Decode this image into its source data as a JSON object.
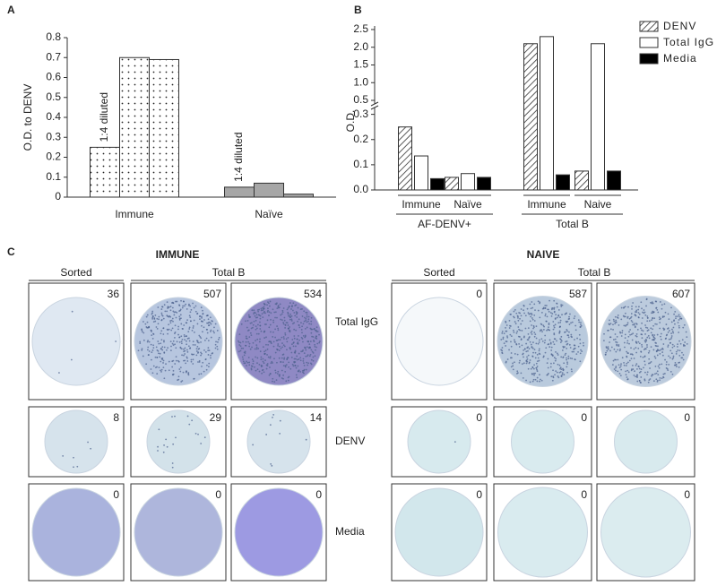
{
  "panel_labels": [
    "A",
    "B",
    "C"
  ],
  "chart_data": [
    {
      "type": "bar",
      "ylabel": "O.D. to DENV",
      "categories": [
        "Immune",
        "Naïve"
      ],
      "values": [
        [
          0.25,
          0.7,
          0.69
        ],
        [
          0.05,
          0.07,
          0.015
        ]
      ],
      "fills": [
        "dotted",
        "#a6a6a6"
      ],
      "annotations": [
        "1:4 diluted",
        "1:4 diluted"
      ],
      "ylim": [
        0,
        0.8
      ],
      "yticks": [
        0,
        0.1,
        0.2,
        0.3,
        0.4,
        0.5,
        0.6,
        0.7,
        0.8
      ]
    },
    {
      "type": "grouped_bar",
      "ylabel": "O.D.",
      "categories": [
        "Immune",
        "Naïve",
        "Immune",
        "Naive"
      ],
      "group_labels": [
        "AF-DENV+",
        "Total B"
      ],
      "series": [
        {
          "name": "DENV",
          "fill": "hatched",
          "values": [
            0.25,
            0.05,
            2.1,
            0.075
          ]
        },
        {
          "name": "Total IgG",
          "fill": "#ffffff",
          "values": [
            0.135,
            0.065,
            2.3,
            2.1
          ]
        },
        {
          "name": "Media",
          "fill": "#000000",
          "values": [
            0.045,
            0.05,
            0.06,
            0.075
          ]
        }
      ],
      "ylim": [
        0,
        2.6
      ],
      "y_break": [
        0.32,
        0.45
      ],
      "yticks": [
        {
          "value": 0,
          "label": "0.0"
        },
        0.1,
        0.2,
        0.3,
        0.5,
        {
          "value": 1,
          "label": "1.0"
        },
        1.5,
        {
          "value": 2,
          "label": "2.0"
        },
        2.5
      ],
      "legend": "upper right"
    }
  ],
  "panel_c": {
    "row_labels": [
      "Total IgG",
      "DENV",
      "Media"
    ],
    "groups": [
      {
        "title": "IMMUNE",
        "headers": [
          "Sorted",
          "Total B"
        ],
        "counts": [
          [
            36,
            507,
            534
          ],
          [
            8,
            29,
            14
          ],
          [
            0,
            0,
            0
          ]
        ]
      },
      {
        "title": "NAIVE",
        "headers": [
          "Sorted",
          "Total B"
        ],
        "counts": [
          [
            0,
            587,
            607
          ],
          [
            0,
            0,
            0
          ],
          [
            0,
            0,
            0
          ]
        ]
      }
    ]
  }
}
